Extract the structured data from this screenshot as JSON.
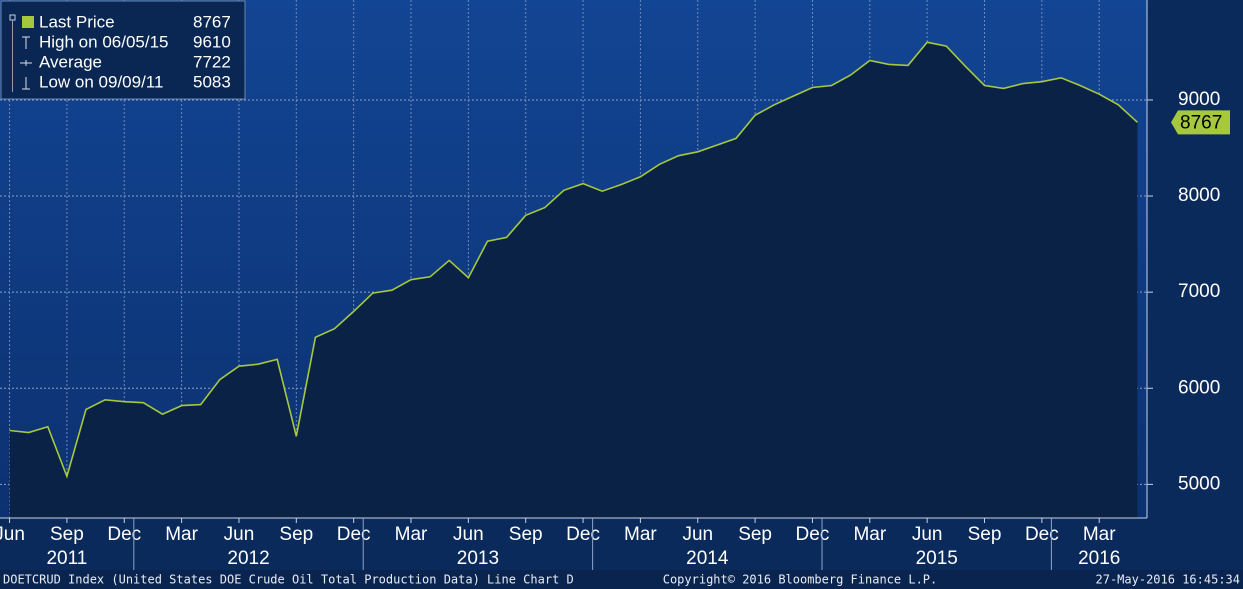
{
  "chart_data": {
    "type": "line",
    "x": [
      "2011-06",
      "2011-07",
      "2011-08",
      "2011-09",
      "2011-10",
      "2011-11",
      "2011-12",
      "2012-01",
      "2012-02",
      "2012-03",
      "2012-04",
      "2012-05",
      "2012-06",
      "2012-07",
      "2012-08",
      "2012-09",
      "2012-10",
      "2012-11",
      "2012-12",
      "2013-01",
      "2013-02",
      "2013-03",
      "2013-04",
      "2013-05",
      "2013-06",
      "2013-07",
      "2013-08",
      "2013-09",
      "2013-10",
      "2013-11",
      "2013-12",
      "2014-01",
      "2014-02",
      "2014-03",
      "2014-04",
      "2014-05",
      "2014-06",
      "2014-07",
      "2014-08",
      "2014-09",
      "2014-10",
      "2014-11",
      "2014-12",
      "2015-01",
      "2015-02",
      "2015-03",
      "2015-04",
      "2015-05",
      "2015-06",
      "2015-07",
      "2015-08",
      "2015-09",
      "2015-10",
      "2015-11",
      "2015-12",
      "2016-01",
      "2016-02",
      "2016-03",
      "2016-04",
      "2016-05"
    ],
    "series": [
      {
        "name": "Last Price",
        "color": "#a6c83c",
        "values": [
          5560,
          5540,
          5600,
          5083,
          5780,
          5880,
          5860,
          5850,
          5730,
          5820,
          5830,
          6090,
          6230,
          6250,
          6300,
          5500,
          6530,
          6620,
          6800,
          6990,
          7020,
          7130,
          7160,
          7330,
          7150,
          7530,
          7570,
          7800,
          7880,
          8060,
          8130,
          8050,
          8120,
          8200,
          8330,
          8420,
          8460,
          8530,
          8600,
          8840,
          8950,
          9040,
          9130,
          9150,
          9260,
          9410,
          9370,
          9360,
          9600,
          9560,
          9350,
          9150,
          9120,
          9170,
          9190,
          9230,
          9150,
          9060,
          8950,
          8767
        ]
      }
    ],
    "legend_stats": [
      {
        "value": 8767
      },
      {
        "label": "High on 06/05/15",
        "value": 9610
      },
      {
        "label": "Average",
        "value": 7722
      },
      {
        "label": "Low on 09/09/11",
        "value": 5083
      }
    ],
    "xlim": [
      "2011-06",
      "2016-06"
    ],
    "xticks": [
      {
        "value": "2011-06",
        "label": "Jun"
      },
      {
        "value": "2011-09",
        "label": "Sep"
      },
      {
        "value": "2011-12",
        "label": "Dec"
      },
      {
        "value": "2012-03",
        "label": "Mar"
      },
      {
        "value": "2012-06",
        "label": "Jun"
      },
      {
        "value": "2012-09",
        "label": "Sep"
      },
      {
        "value": "2012-12",
        "label": "Dec"
      },
      {
        "value": "2013-03",
        "label": "Mar"
      },
      {
        "value": "2013-06",
        "label": "Jun"
      },
      {
        "value": "2013-09",
        "label": "Sep"
      },
      {
        "value": "2013-12",
        "label": "Dec"
      },
      {
        "value": "2014-03",
        "label": "Mar"
      },
      {
        "value": "2014-06",
        "label": "Jun"
      },
      {
        "value": "2014-09",
        "label": "Sep"
      },
      {
        "value": "2014-12",
        "label": "Dec"
      },
      {
        "value": "2015-03",
        "label": "Mar"
      },
      {
        "value": "2015-06",
        "label": "Jun"
      },
      {
        "value": "2015-09",
        "label": "Sep"
      },
      {
        "value": "2015-12",
        "label": "Dec"
      },
      {
        "value": "2016-03",
        "label": "Mar"
      }
    ],
    "years": [
      "2011",
      "2012",
      "2013",
      "2014",
      "2015",
      "2016"
    ],
    "ylim": [
      4650,
      10040
    ],
    "yticks": [
      5000,
      6000,
      7000,
      8000,
      9000
    ],
    "grid": true,
    "footer_left": "DOETCRUD Index (United States DOE Crude Oil Total Production Data) Line Chart  D",
    "footer_center": "Copyright© 2016 Bloomberg Finance L.P.",
    "footer_right": "27-May-2016 16:45:34"
  }
}
